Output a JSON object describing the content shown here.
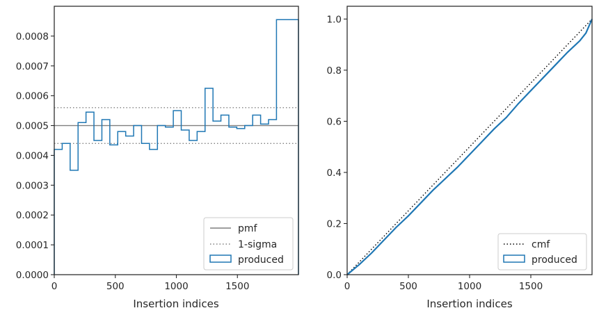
{
  "chart_data": [
    {
      "type": "step",
      "xlabel": "Insertion indices",
      "ylabel": "",
      "xlim": [
        0,
        2000
      ],
      "ylim": [
        0,
        0.0009
      ],
      "xticks": [
        "0",
        "500",
        "1000",
        "1500"
      ],
      "xtick_values": [
        0,
        500,
        1000,
        1500
      ],
      "yticks": [
        "0.0000",
        "0.0001",
        "0.0002",
        "0.0003",
        "0.0004",
        "0.0005",
        "0.0006",
        "0.0007",
        "0.0008"
      ],
      "ytick_values": [
        0,
        0.0001,
        0.0002,
        0.0003,
        0.0004,
        0.0005,
        0.0006,
        0.0007,
        0.0008
      ],
      "hlines": [
        {
          "name": "pmf",
          "y": 0.0005,
          "style": "solid",
          "color": "#7f7f7f"
        },
        {
          "name": "1-sigma",
          "y": 0.00056,
          "style": "dotted",
          "color": "#7f7f7f"
        },
        {
          "name": "",
          "y": 0.00044,
          "style": "dotted",
          "color": "#7f7f7f"
        }
      ],
      "series": [
        {
          "name": "produced",
          "color": "#1f77b4",
          "bin_edges": [
            0,
            65,
            130,
            195,
            260,
            325,
            390,
            455,
            520,
            585,
            650,
            715,
            780,
            845,
            910,
            975,
            1040,
            1105,
            1170,
            1235,
            1300,
            1365,
            1430,
            1495,
            1560,
            1625,
            1690,
            1755,
            1820,
            1885,
            1950,
            2000
          ],
          "values": [
            0.00042,
            0.00044,
            0.00035,
            0.00051,
            0.000545,
            0.00045,
            0.00052,
            0.000435,
            0.00048,
            0.000465,
            0.0005,
            0.00044,
            0.00042,
            0.0005,
            0.000495,
            0.00055,
            0.000485,
            0.00045,
            0.00048,
            0.000625,
            0.000515,
            0.000535,
            0.000495,
            0.00049,
            0.0005,
            0.000535,
            0.000505,
            0.00052,
            0.000855,
            0.000855,
            0.000855
          ]
        }
      ],
      "legend": {
        "position": "lower-right",
        "entries": [
          "pmf",
          "1-sigma",
          "produced"
        ]
      }
    },
    {
      "type": "line",
      "xlabel": "Insertion indices",
      "ylabel": "",
      "xlim": [
        0,
        2000
      ],
      "ylim": [
        0,
        1.05
      ],
      "xticks": [
        "0",
        "500",
        "1000",
        "1500"
      ],
      "xtick_values": [
        0,
        500,
        1000,
        1500
      ],
      "yticks": [
        "0.0",
        "0.2",
        "0.4",
        "0.6",
        "0.8",
        "1.0"
      ],
      "ytick_values": [
        0,
        0.2,
        0.4,
        0.6,
        0.8,
        1.0
      ],
      "series": [
        {
          "name": "cmf",
          "style": "dotted",
          "color": "#000000",
          "x": [
            0,
            2000
          ],
          "y": [
            0,
            1.0
          ]
        },
        {
          "name": "produced",
          "style": "solid",
          "color": "#1f77b4",
          "x": [
            0,
            100,
            200,
            300,
            400,
            500,
            600,
            700,
            800,
            900,
            1000,
            1100,
            1200,
            1300,
            1400,
            1500,
            1600,
            1700,
            1800,
            1900,
            1950,
            2000
          ],
          "y": [
            0,
            0.04,
            0.085,
            0.135,
            0.185,
            0.23,
            0.28,
            0.33,
            0.375,
            0.42,
            0.47,
            0.52,
            0.57,
            0.615,
            0.67,
            0.72,
            0.77,
            0.82,
            0.87,
            0.915,
            0.945,
            1.0
          ]
        }
      ],
      "legend": {
        "position": "lower-right",
        "entries": [
          "cmf",
          "produced"
        ]
      }
    }
  ]
}
